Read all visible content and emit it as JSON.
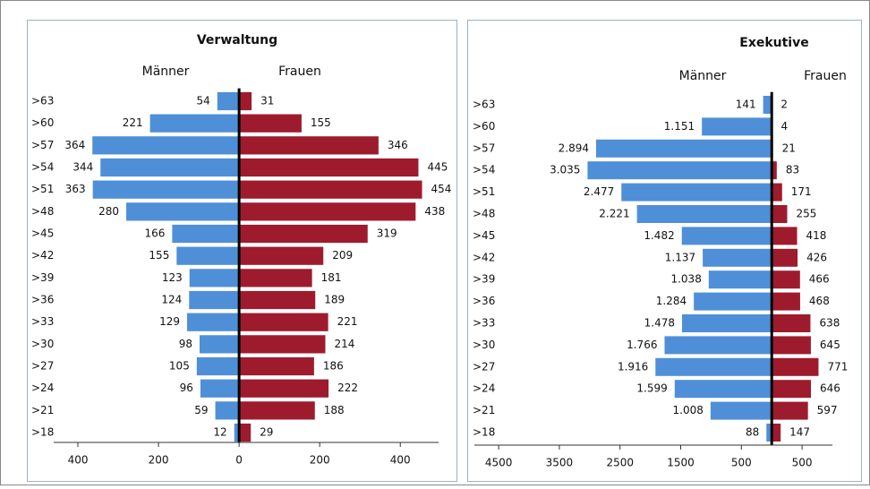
{
  "chart_data": [
    {
      "type": "pyramid",
      "title": "Verwaltung",
      "categories": [
        ">63",
        ">60",
        ">57",
        ">54",
        ">51",
        ">48",
        ">45",
        ">42",
        ">39",
        ">36",
        ">33",
        ">30",
        ">27",
        ">24",
        ">21",
        ">18"
      ],
      "series": [
        {
          "name": "Männer",
          "color": "#4f8fd8",
          "side": "left",
          "values": [
            54,
            221,
            364,
            344,
            363,
            280,
            166,
            155,
            123,
            124,
            129,
            98,
            105,
            96,
            59,
            12
          ]
        },
        {
          "name": "Frauen",
          "color": "#9e1b2e",
          "side": "right",
          "values": [
            31,
            155,
            346,
            445,
            454,
            438,
            319,
            209,
            181,
            189,
            221,
            214,
            186,
            222,
            188,
            29
          ]
        }
      ],
      "xlim": [
        -460,
        495
      ],
      "xticks": [
        {
          "value": -400,
          "label": "400"
        },
        {
          "value": -200,
          "label": "200"
        },
        0,
        200,
        400
      ]
    },
    {
      "type": "pyramid",
      "title": "Exekutive",
      "categories": [
        ">63",
        ">60",
        ">57",
        ">54",
        ">51",
        ">48",
        ">45",
        ">42",
        ">39",
        ">36",
        ">33",
        ">30",
        ">27",
        ">24",
        ">21",
        ">18"
      ],
      "series": [
        {
          "name": "Männer",
          "color": "#4f8fd8",
          "side": "left",
          "values": [
            141,
            1151,
            2894,
            3035,
            2477,
            2221,
            1482,
            1137,
            1038,
            1284,
            1478,
            1766,
            1916,
            1599,
            1008,
            88
          ],
          "value_labels": [
            "141",
            "1.151",
            "2.894",
            "3.035",
            "2.477",
            "2.221",
            "1.482",
            "1.137",
            "1.038",
            "1.284",
            "1.478",
            "1.766",
            "1.916",
            "1.599",
            "1.008",
            "88"
          ]
        },
        {
          "name": "Frauen",
          "color": "#9e1b2e",
          "side": "right",
          "values": [
            2,
            4,
            21,
            83,
            171,
            255,
            418,
            426,
            466,
            468,
            638,
            645,
            771,
            646,
            597,
            147
          ]
        }
      ],
      "xlim": [
        -4900,
        1000
      ],
      "xticks": [
        {
          "value": -4500,
          "label": "4500"
        },
        {
          "value": -3500,
          "label": "3500"
        },
        {
          "value": -2500,
          "label": "2500"
        },
        {
          "value": -1500,
          "label": "1500"
        },
        {
          "value": -500,
          "label": "500"
        },
        500
      ]
    }
  ]
}
